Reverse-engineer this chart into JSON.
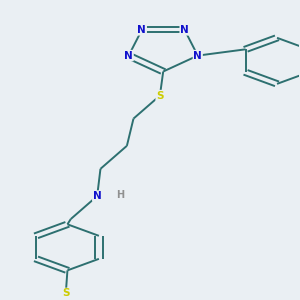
{
  "bg_color": "#eaeff3",
  "bond_color": "#2d7070",
  "N_color": "#1010cc",
  "S_color": "#cccc00",
  "H_color": "#909090",
  "dbo": 0.025,
  "lw": 1.4,
  "fs": 7.5,
  "fig_w": 3.0,
  "fig_h": 3.0,
  "xlim": [
    0.3,
    2.1
  ],
  "ylim": [
    0.1,
    2.9
  ]
}
